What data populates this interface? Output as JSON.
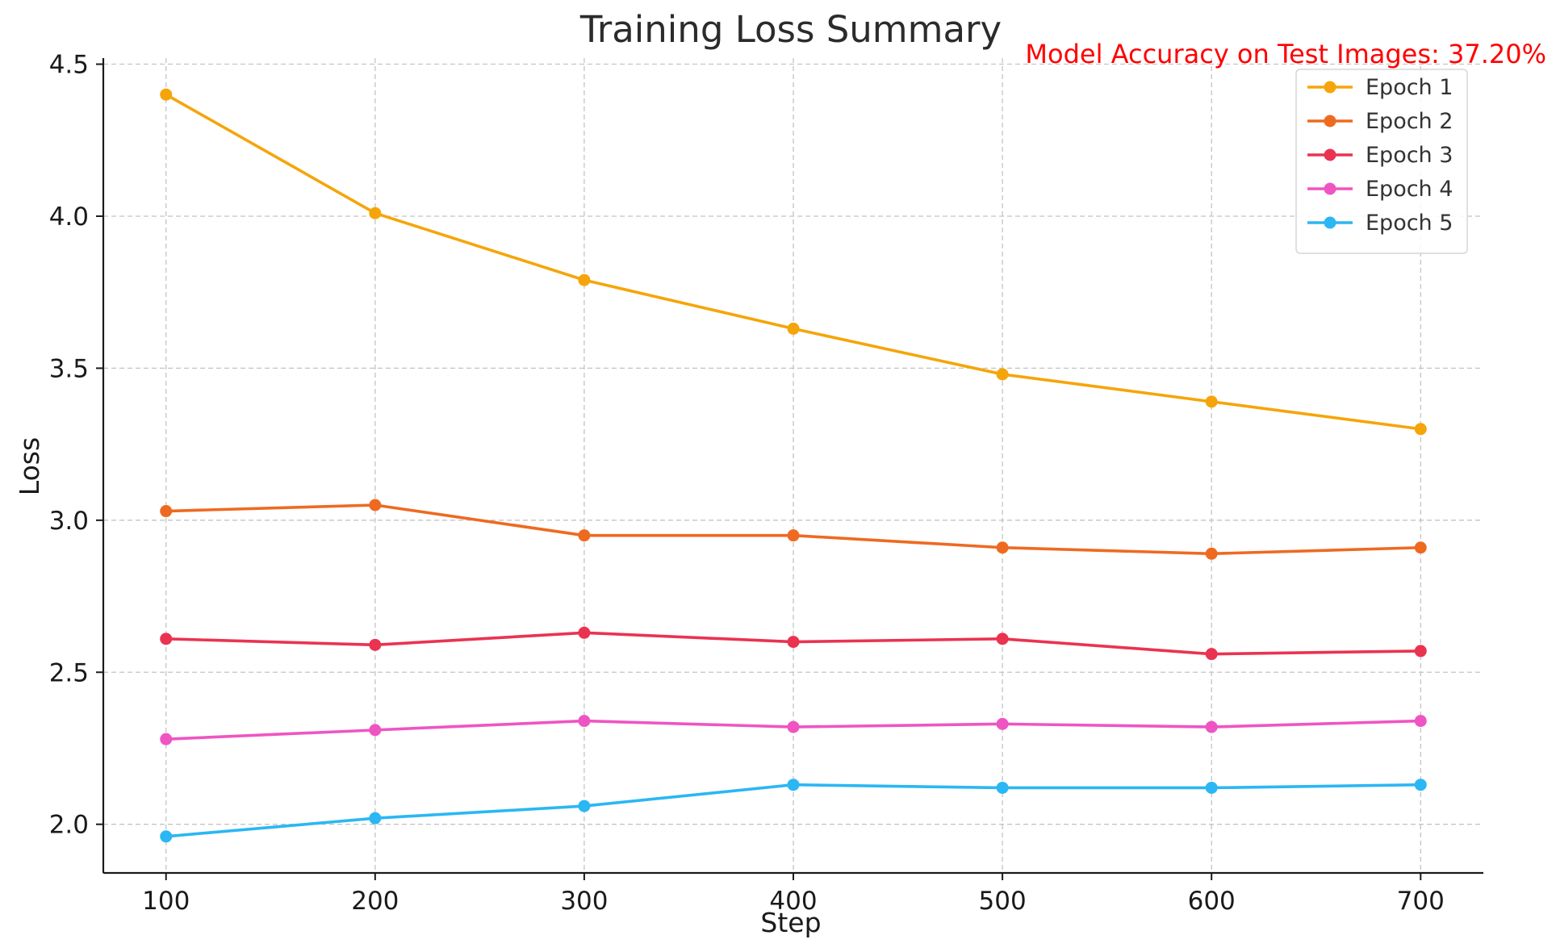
{
  "chart_data": {
    "type": "line",
    "title": "Training Loss Summary",
    "xlabel": "Step",
    "ylabel": "Loss",
    "x": [
      100,
      200,
      300,
      400,
      500,
      600,
      700
    ],
    "xticks": [
      "100",
      "200",
      "300",
      "400",
      "500",
      "600",
      "700"
    ],
    "yticks": [
      "2.0",
      "2.5",
      "3.0",
      "3.5",
      "4.0",
      "4.5"
    ],
    "xlim": [
      70,
      730
    ],
    "ylim": [
      1.84,
      4.52
    ],
    "grid": true,
    "legend_position": "top-right",
    "annotation": {
      "text": "Model Accuracy on Test Images: 37.20%",
      "color": "#ff0000"
    },
    "series": [
      {
        "name": "Epoch 1",
        "color": "#f5a50a",
        "values": [
          4.4,
          4.01,
          3.79,
          3.63,
          3.48,
          3.39,
          3.3
        ]
      },
      {
        "name": "Epoch 2",
        "color": "#ee6a21",
        "values": [
          3.03,
          3.05,
          2.95,
          2.95,
          2.91,
          2.89,
          2.91
        ]
      },
      {
        "name": "Epoch 3",
        "color": "#ea3350",
        "values": [
          2.61,
          2.59,
          2.63,
          2.6,
          2.61,
          2.56,
          2.57
        ]
      },
      {
        "name": "Epoch 4",
        "color": "#ef55c2",
        "values": [
          2.28,
          2.31,
          2.34,
          2.32,
          2.33,
          2.32,
          2.34
        ]
      },
      {
        "name": "Epoch 5",
        "color": "#2bb7f3",
        "values": [
          1.96,
          2.02,
          2.06,
          2.13,
          2.12,
          2.12,
          2.13
        ]
      }
    ]
  }
}
